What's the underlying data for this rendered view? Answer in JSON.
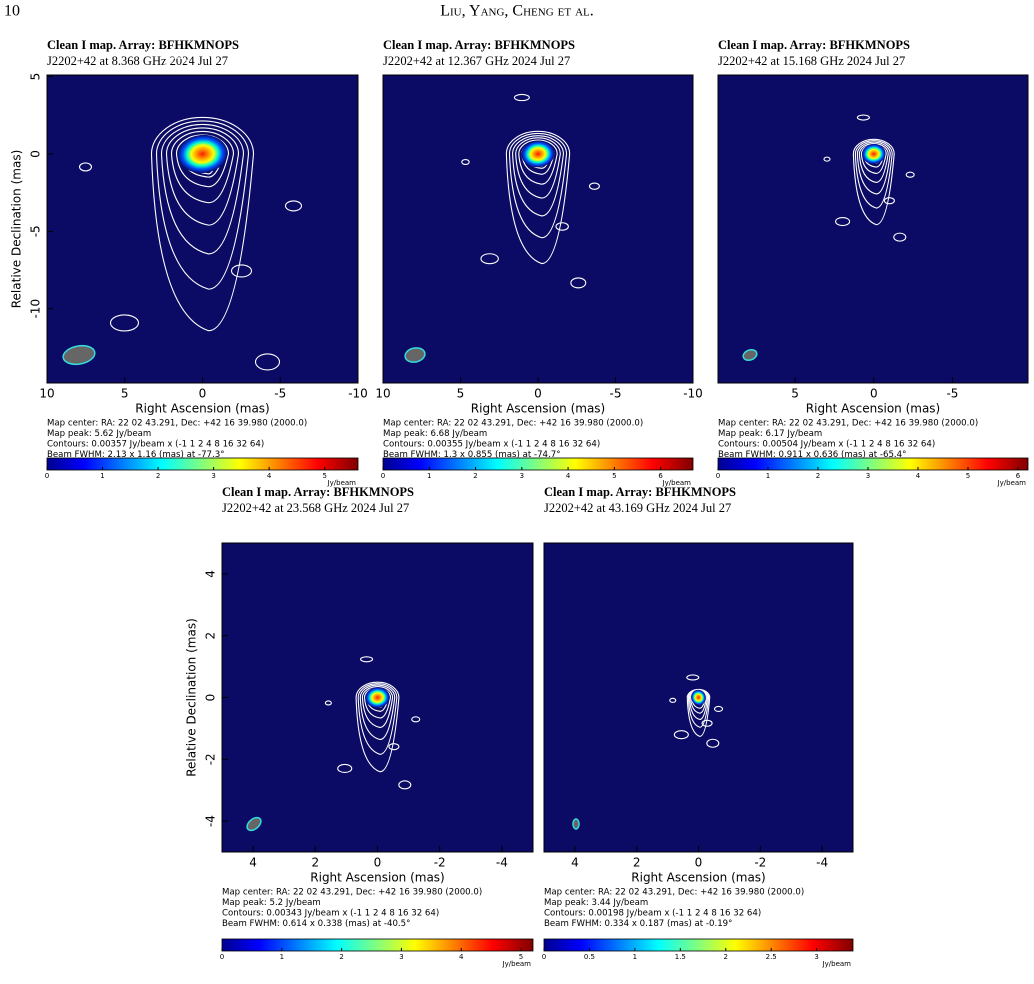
{
  "header": {
    "page_number": "10",
    "authors": "Liu, Yang, Cheng et al."
  },
  "panels": [
    {
      "title": "Clean I map.  Array:  BFHKMNOPS",
      "subtitle": "J2202+42 at 8.368 GHz 2024 Jul 27",
      "xlabel": "Right Ascension  (mas)",
      "ylabel": "Relative Declination  (mas)",
      "xlim": [
        10,
        -10
      ],
      "ylim": [
        -14.8,
        5.1
      ],
      "xticks": [
        10,
        5,
        0,
        -5,
        -10
      ],
      "yticks": [
        5,
        0,
        -5,
        -10
      ],
      "info": [
        "Map center:  RA: 22 02 43.291,  Dec: +42 16 39.980 (2000.0)",
        "Map peak: 5.62 Jy/beam",
        "Contours: 0.00357 Jy/beam x (-1 1 2 4 8 16 32 64)",
        "Beam FWHM: 2.13 x 1.16 (mas) at -77.3°"
      ],
      "colorbar": {
        "clim": [
          0,
          5.6
        ],
        "ticks": [
          0,
          1,
          2,
          3,
          4,
          5
        ],
        "unit": "Jy/beam"
      }
    },
    {
      "title": "Clean I map.  Array:  BFHKMNOPS",
      "subtitle": "J2202+42 at 12.367 GHz 2024 Jul 27",
      "xlabel": "Right Ascension  (mas)",
      "xlim": [
        10,
        -10
      ],
      "ylim": [
        -14.8,
        5.1
      ],
      "xticks": [
        10,
        5,
        0,
        -5,
        -10
      ],
      "info": [
        "Map center:  RA: 22 02 43.291,  Dec: +42 16 39.980 (2000.0)",
        "Map peak: 6.68 Jy/beam",
        "Contours: 0.00355 Jy/beam x (-1 1 2 4 8 16 32 64)",
        "Beam FWHM: 1.3 x 0.855 (mas) at -74.7°"
      ],
      "colorbar": {
        "clim": [
          0,
          6.7
        ],
        "ticks": [
          0,
          1,
          2,
          3,
          4,
          5,
          6
        ],
        "unit": "Jy/beam"
      }
    },
    {
      "title": "Clean I map.  Array:  BFHKMNOPS",
      "subtitle": "J2202+42 at 15.168 GHz 2024 Jul 27",
      "xlabel": "Right Ascension  (mas)",
      "xlim": [
        9.9,
        -9.8
      ],
      "ylim": [
        -14.8,
        5.1
      ],
      "xticks": [
        5,
        0,
        -5
      ],
      "info": [
        "Map center:  RA: 22 02 43.291,  Dec: +42 16 39.980 (2000.0)",
        "Map peak: 6.17 Jy/beam",
        "Contours: 0.00504 Jy/beam x (-1 1 2 4 8 16 32 64)",
        "Beam FWHM: 0.911 x 0.636 (mas) at -65.4°"
      ],
      "colorbar": {
        "clim": [
          0,
          6.2
        ],
        "ticks": [
          0,
          1,
          2,
          3,
          4,
          5,
          6
        ],
        "unit": "Jy/beam"
      }
    },
    {
      "title": "Clean I map.  Array:  BFHKMNOPS",
      "subtitle": "J2202+42 at 23.568 GHz 2024 Jul 27",
      "xlabel": "Right Ascension  (mas)",
      "ylabel": "Relative Declination  (mas)",
      "xlim": [
        5,
        -5
      ],
      "ylim": [
        -5,
        5
      ],
      "xticks": [
        4,
        2,
        0,
        -2,
        -4
      ],
      "yticks": [
        4,
        2,
        0,
        -2,
        -4
      ],
      "info": [
        "Map center:  RA: 22 02 43.291,  Dec: +42 16 39.980 (2000.0)",
        "Map peak: 5.2 Jy/beam",
        "Contours: 0.00343 Jy/beam x (-1 1 2 4 8 16 32 64)",
        "Beam FWHM: 0.614 x 0.338 (mas) at -40.5°"
      ],
      "colorbar": {
        "clim": [
          0,
          5.2
        ],
        "ticks": [
          0,
          1,
          2,
          3,
          4,
          5
        ],
        "unit": "Jy/beam"
      }
    },
    {
      "title": "Clean I map.  Array:  BFHKMNOPS",
      "subtitle": "J2202+42 at 43.169 GHz 2024 Jul 27",
      "xlabel": "Right Ascension  (mas)",
      "xlim": [
        5,
        -5
      ],
      "ylim": [
        -5,
        5
      ],
      "xticks": [
        4,
        2,
        0,
        -2,
        -4
      ],
      "info": [
        "Map center:  RA: 22 02 43.291,  Dec: +42 16 39.980 (2000.0)",
        "Map peak: 3.44 Jy/beam",
        "Contours: 0.00198 Jy/beam x (-1 1 2 4 8 16 32 64)",
        "Beam FWHM: 0.334 x 0.187 (mas) at -0.19°"
      ],
      "colorbar": {
        "clim": [
          0,
          3.4
        ],
        "ticks": [
          0,
          0.5,
          1,
          1.5,
          2,
          2.5,
          3
        ],
        "unit": "Jy/beam"
      }
    }
  ]
}
